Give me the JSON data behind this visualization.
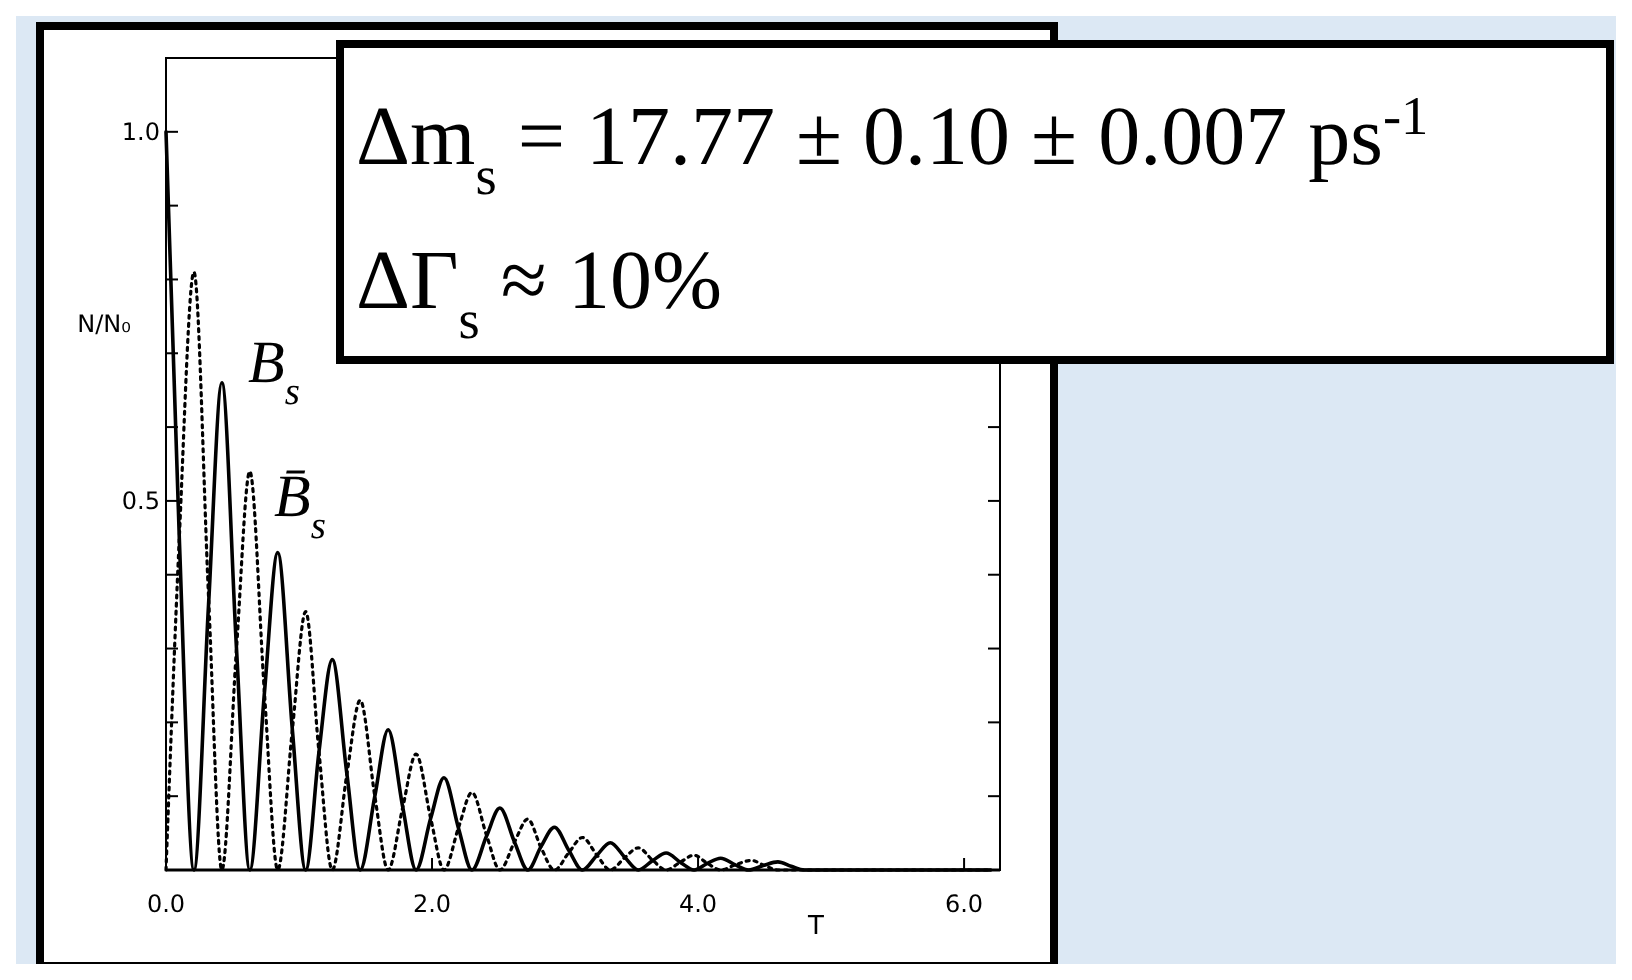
{
  "chart_data": {
    "type": "line",
    "xlabel": "T",
    "ylabel": "N/N₀",
    "xlim": [
      0,
      6.27
    ],
    "ylim": [
      0,
      1.1
    ],
    "xticks": [
      {
        "value": 0,
        "label": "0.0"
      },
      {
        "value": 2,
        "label": "2.0"
      },
      {
        "value": 4,
        "label": "4.0"
      },
      {
        "value": 6,
        "label": "6.0"
      }
    ],
    "yticks": [
      {
        "value": 0.1,
        "label": null
      },
      {
        "value": 0.2,
        "label": null
      },
      {
        "value": 0.3,
        "label": null
      },
      {
        "value": 0.4,
        "label": null
      },
      {
        "value": 0.5,
        "label": "0.5"
      },
      {
        "value": 0.6,
        "label": null
      },
      {
        "value": 0.7,
        "label": null
      },
      {
        "value": 0.8,
        "label": null
      },
      {
        "value": 0.9,
        "label": null
      },
      {
        "value": 1.0,
        "label": "1.0"
      }
    ],
    "grid": false,
    "annotations": [
      "Δm$_{s}$ = 17.77 ± 0.10 ± 0.007 ps$^{-1}$",
      "ΔΓ$_{s}$ ≈ 10%"
    ],
    "series": [
      {
        "name": "B$_{s}$",
        "color": "#000000",
        "line_style": "solid",
        "x": [
          0,
          0.1,
          0.21,
          0.32,
          0.42,
          0.53,
          0.63,
          0.74,
          0.84,
          0.95,
          1.05,
          1.15,
          1.25,
          1.36,
          1.46,
          1.57,
          1.67,
          1.78,
          1.88,
          1.99,
          2.09,
          2.2,
          2.3,
          2.41,
          2.51,
          2.62,
          2.72,
          2.82,
          2.92,
          3.03,
          3.13,
          3.24,
          3.34,
          3.45,
          3.55,
          3.66,
          3.76,
          3.87,
          3.97,
          4.07,
          4.17,
          4.28,
          4.38,
          4.49,
          4.6,
          4.7,
          4.8,
          6.2
        ],
        "values": [
          1.0,
          0.45,
          0,
          0.36,
          0.66,
          0.3,
          0,
          0.24,
          0.43,
          0.19,
          0,
          0.16,
          0.285,
          0.13,
          0,
          0.1,
          0.19,
          0.085,
          0,
          0.07,
          0.125,
          0.056,
          0,
          0.046,
          0.084,
          0.038,
          0,
          0.032,
          0.058,
          0.026,
          0,
          0.02,
          0.037,
          0.017,
          0,
          0.013,
          0.023,
          0.01,
          0,
          0.009,
          0.016,
          0.007,
          0,
          0.006,
          0.011,
          0.005,
          0,
          0
        ]
      },
      {
        "name": "B̄$_{s}$",
        "color": "#000000",
        "line_style": "dotted",
        "x": [
          0,
          0.1,
          0.21,
          0.32,
          0.42,
          0.53,
          0.63,
          0.74,
          0.84,
          0.95,
          1.05,
          1.15,
          1.25,
          1.36,
          1.46,
          1.57,
          1.67,
          1.78,
          1.88,
          1.99,
          2.09,
          2.2,
          2.3,
          2.41,
          2.51,
          2.62,
          2.72,
          2.82,
          2.92,
          3.03,
          3.13,
          3.24,
          3.34,
          3.45,
          3.55,
          3.66,
          3.76,
          3.87,
          3.97,
          4.07,
          4.17,
          4.28,
          4.4,
          4.5,
          4.6,
          6.2
        ],
        "values": [
          0,
          0.45,
          0.81,
          0.37,
          0,
          0.3,
          0.54,
          0.24,
          0,
          0.19,
          0.35,
          0.16,
          0,
          0.13,
          0.23,
          0.1,
          0,
          0.085,
          0.157,
          0.07,
          0,
          0.058,
          0.105,
          0.047,
          0,
          0.038,
          0.069,
          0.03,
          0,
          0.024,
          0.044,
          0.02,
          0,
          0.017,
          0.03,
          0.013,
          0,
          0.011,
          0.02,
          0.009,
          0,
          0.007,
          0.013,
          0.006,
          0,
          0
        ]
      }
    ]
  }
}
